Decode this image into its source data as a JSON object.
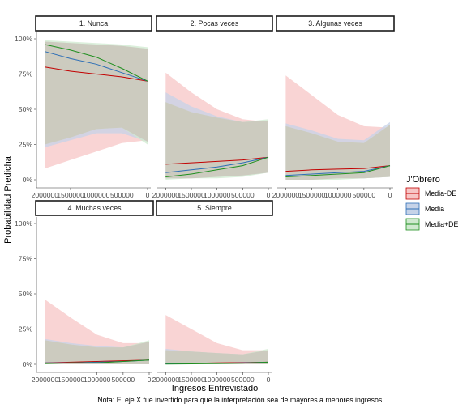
{
  "chart_data": {
    "type": "line",
    "xlabel": "Ingresos Entrevistado",
    "ylabel": "Probabilidad Predicha",
    "caption": "Nota: El eje X fue invertido para que la interpretación sea de mayores a menores ingresos.",
    "x_reversed": true,
    "xlim": [
      2100000,
      0
    ],
    "ylim": [
      0,
      1
    ],
    "x_ticks": [
      2000000,
      1500000,
      1000000,
      500000,
      0
    ],
    "x_tick_labels": [
      "2000000",
      "1500000",
      "1000000",
      "500000",
      "0"
    ],
    "y_ticks": [
      0,
      0.25,
      0.5,
      0.75,
      1
    ],
    "y_tick_labels": [
      "0%",
      "25%",
      "50%",
      "75%",
      "100%"
    ],
    "x": [
      2000000,
      1500000,
      1000000,
      500000,
      0
    ],
    "legend": {
      "title": "J'Obrero",
      "placement": "right",
      "entries": [
        "Media-DE",
        "Media",
        "Media+DE"
      ]
    },
    "colors": {
      "Media-DE": "#c20000",
      "Media": "#2e6fb6",
      "Media+DE": "#1f8f1f",
      "Media-DE-band": "#f7c6c6",
      "Media-band": "#c6d3e8",
      "Media+DE-band": "#cfe9cf",
      "overlap": "#cbc8bd"
    },
    "panels": [
      {
        "title": "1. Nunca",
        "series": [
          {
            "name": "Media-DE",
            "values": [
              0.8,
              0.77,
              0.75,
              0.73,
              0.7
            ],
            "lower": [
              0.08,
              0.14,
              0.2,
              0.26,
              0.28
            ],
            "upper": [
              0.98,
              0.97,
              0.95,
              0.93,
              0.92
            ]
          },
          {
            "name": "Media",
            "values": [
              0.91,
              0.86,
              0.82,
              0.76,
              0.7
            ],
            "lower": [
              0.23,
              0.28,
              0.33,
              0.33,
              0.27
            ],
            "upper": [
              0.98,
              0.97,
              0.96,
              0.95,
              0.93
            ]
          },
          {
            "name": "Media+DE",
            "values": [
              0.96,
              0.92,
              0.87,
              0.79,
              0.7
            ],
            "lower": [
              0.25,
              0.3,
              0.36,
              0.37,
              0.25
            ],
            "upper": [
              0.99,
              0.98,
              0.97,
              0.96,
              0.94
            ]
          }
        ]
      },
      {
        "title": "2. Pocas veces",
        "series": [
          {
            "name": "Media-DE",
            "values": [
              0.11,
              0.12,
              0.13,
              0.14,
              0.16
            ],
            "lower": [
              0.01,
              0.02,
              0.02,
              0.04,
              0.06
            ],
            "upper": [
              0.76,
              0.62,
              0.5,
              0.43,
              0.41
            ]
          },
          {
            "name": "Media",
            "values": [
              0.05,
              0.07,
              0.09,
              0.12,
              0.16
            ],
            "lower": [
              0.01,
              0.01,
              0.02,
              0.03,
              0.05
            ],
            "upper": [
              0.62,
              0.52,
              0.45,
              0.41,
              0.42
            ]
          },
          {
            "name": "Media+DE",
            "values": [
              0.02,
              0.04,
              0.07,
              0.1,
              0.16
            ],
            "lower": [
              0.0,
              0.01,
              0.01,
              0.02,
              0.05
            ],
            "upper": [
              0.55,
              0.48,
              0.44,
              0.41,
              0.43
            ]
          }
        ]
      },
      {
        "title": "3. Algunas veces",
        "series": [
          {
            "name": "Media-DE",
            "values": [
              0.06,
              0.07,
              0.075,
              0.08,
              0.1
            ],
            "lower": [
              0.0,
              0.01,
              0.01,
              0.02,
              0.02
            ],
            "upper": [
              0.74,
              0.6,
              0.46,
              0.38,
              0.37
            ]
          },
          {
            "name": "Media",
            "values": [
              0.03,
              0.04,
              0.05,
              0.06,
              0.1
            ],
            "lower": [
              0.0,
              0.0,
              0.01,
              0.01,
              0.02
            ],
            "upper": [
              0.4,
              0.35,
              0.29,
              0.28,
              0.41
            ]
          },
          {
            "name": "Media+DE",
            "values": [
              0.02,
              0.03,
              0.04,
              0.05,
              0.1
            ],
            "lower": [
              0.0,
              0.0,
              0.0,
              0.01,
              0.02
            ],
            "upper": [
              0.38,
              0.33,
              0.27,
              0.26,
              0.39
            ]
          }
        ]
      },
      {
        "title": "4. Muchas veces",
        "series": [
          {
            "name": "Media-DE",
            "values": [
              0.01,
              0.015,
              0.02,
              0.025,
              0.03
            ],
            "lower": [
              0.0,
              0.0,
              0.0,
              0.0,
              0.0
            ],
            "upper": [
              0.46,
              0.33,
              0.21,
              0.15,
              0.15
            ]
          },
          {
            "name": "Media",
            "values": [
              0.01,
              0.01,
              0.015,
              0.02,
              0.03
            ],
            "lower": [
              0.0,
              0.0,
              0.0,
              0.0,
              0.0
            ],
            "upper": [
              0.18,
              0.15,
              0.13,
              0.12,
              0.16
            ]
          },
          {
            "name": "Media+DE",
            "values": [
              0.005,
              0.01,
              0.01,
              0.02,
              0.03
            ],
            "lower": [
              0.0,
              0.0,
              0.0,
              0.0,
              0.0
            ],
            "upper": [
              0.17,
              0.14,
              0.12,
              0.12,
              0.17
            ]
          }
        ]
      },
      {
        "title": "5. Siempre",
        "series": [
          {
            "name": "Media-DE",
            "values": [
              0.005,
              0.007,
              0.01,
              0.012,
              0.015
            ],
            "lower": [
              0.0,
              0.0,
              0.0,
              0.0,
              0.0
            ],
            "upper": [
              0.35,
              0.25,
              0.15,
              0.1,
              0.1
            ]
          },
          {
            "name": "Media",
            "values": [
              0.003,
              0.005,
              0.007,
              0.01,
              0.015
            ],
            "lower": [
              0.0,
              0.0,
              0.0,
              0.0,
              0.0
            ],
            "upper": [
              0.11,
              0.09,
              0.08,
              0.07,
              0.1
            ]
          },
          {
            "name": "Media+DE",
            "values": [
              0.002,
              0.003,
              0.005,
              0.008,
              0.015
            ],
            "lower": [
              0.0,
              0.0,
              0.0,
              0.0,
              0.0
            ],
            "upper": [
              0.1,
              0.09,
              0.08,
              0.07,
              0.11
            ]
          }
        ]
      }
    ]
  }
}
